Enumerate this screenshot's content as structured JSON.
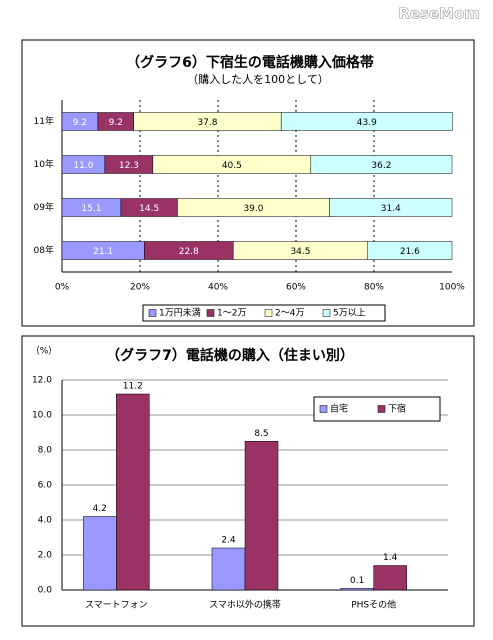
{
  "logo": "ReseMom",
  "chart_data": [
    {
      "type": "bar",
      "orientation": "horizontal",
      "stacked": true,
      "title": "（グラフ6）下宿生の電話機購入価格帯",
      "subtitle": "（購入した人を100として）",
      "categories": [
        "11年",
        "10年",
        "09年",
        "08年"
      ],
      "series": [
        {
          "name": "1万円未満",
          "color": "#9999ff",
          "values": [
            9.2,
            11.0,
            15.1,
            21.1
          ],
          "value_labels": [
            "9.2",
            "11.0",
            "15.1",
            "21.1"
          ]
        },
        {
          "name": "1～2万",
          "color": "#993366",
          "values": [
            9.2,
            12.3,
            14.5,
            22.8
          ],
          "value_labels": [
            "9.2",
            "12.3",
            "14.5",
            "22.8"
          ]
        },
        {
          "name": "2～4万",
          "color": "#ffffcc",
          "values": [
            37.8,
            40.5,
            39.0,
            34.5
          ],
          "value_labels": [
            "37.8",
            "40.5",
            "39.0",
            "34.5"
          ]
        },
        {
          "name": "5万以上",
          "color": "#ccffff",
          "values": [
            43.9,
            36.2,
            31.4,
            21.6
          ],
          "value_labels": [
            "43.9",
            "36.2",
            "31.4",
            "21.6"
          ]
        }
      ],
      "xlim": [
        0,
        100
      ],
      "xticks": [
        {
          "value": 0,
          "label": "0%"
        },
        {
          "value": 20,
          "label": "20%"
        },
        {
          "value": 40,
          "label": "40%"
        },
        {
          "value": 60,
          "label": "60%"
        },
        {
          "value": 80,
          "label": "80%"
        },
        {
          "value": 100,
          "label": "100%"
        }
      ],
      "grid": true,
      "grid_style": "dashed",
      "legend": "bottom"
    },
    {
      "type": "bar",
      "orientation": "vertical",
      "stacked": false,
      "title": "（グラフ7）電話機の購入（住まい別）",
      "ylabel": "（%）",
      "categories": [
        "スマートフォン",
        "スマホ以外の携帯",
        "PHSその他"
      ],
      "series": [
        {
          "name": "自宅",
          "color": "#9999ff",
          "values": [
            4.2,
            2.4,
            0.1
          ]
        },
        {
          "name": "下宿",
          "color": "#993366",
          "values": [
            11.2,
            8.5,
            1.4
          ]
        }
      ],
      "ylim": [
        0,
        12
      ],
      "yticks": [
        {
          "value": 0,
          "label": "0.0"
        },
        {
          "value": 2,
          "label": "2.0"
        },
        {
          "value": 4,
          "label": "4.0"
        },
        {
          "value": 6,
          "label": "6.0"
        },
        {
          "value": 8,
          "label": "8.0"
        },
        {
          "value": 10,
          "label": "10.0"
        },
        {
          "value": 12,
          "label": "12.0"
        }
      ],
      "grid": true,
      "grid_style": "solid",
      "legend": "top-right"
    }
  ]
}
